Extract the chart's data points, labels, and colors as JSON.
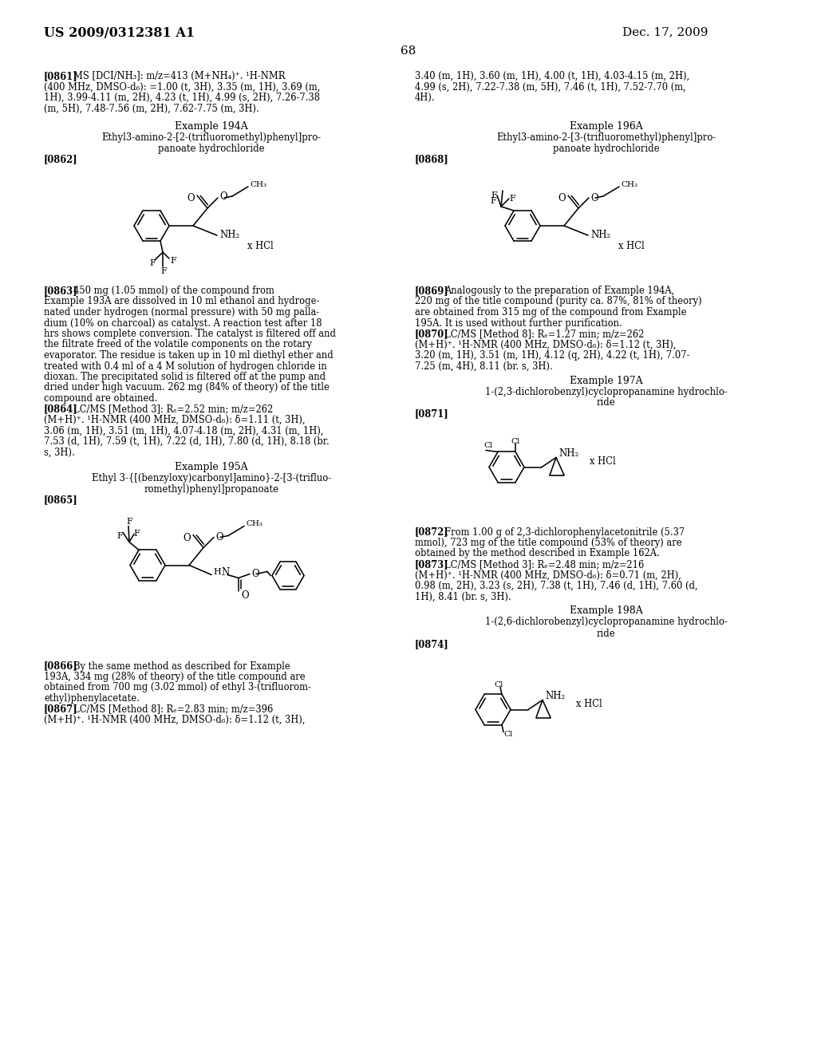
{
  "bg": "#ffffff",
  "header_left": "US 2009/0312381 A1",
  "header_right": "Dec. 17, 2009",
  "page_num": "68"
}
